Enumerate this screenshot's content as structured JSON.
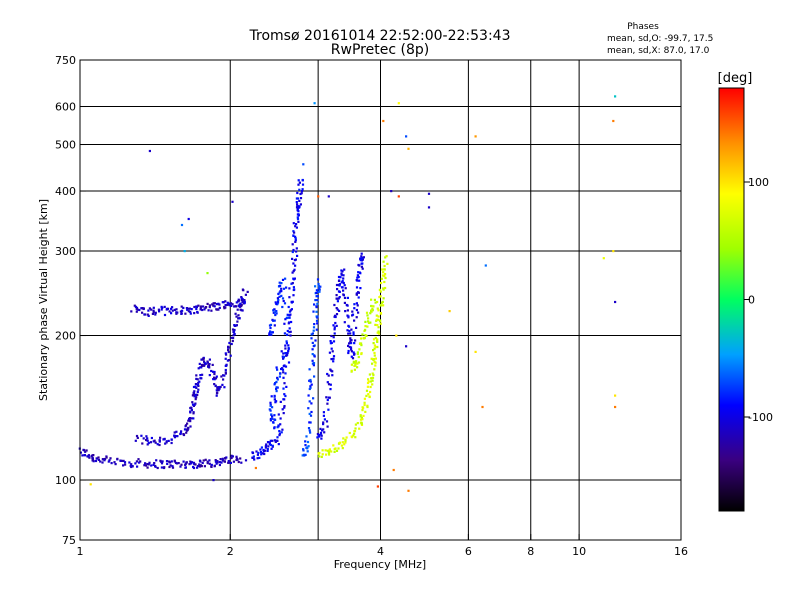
{
  "chart_data": {
    "type": "scatter",
    "title_line1": "Tromsø 20161014 22:52:00-22:53:43",
    "title_line2": "RwPretec (8p)",
    "xlabel": "Frequency [MHz]",
    "ylabel": "Stationary phase Virtual Height [km]",
    "x_scale": "log",
    "y_scale": "log",
    "xlim": [
      1,
      16
    ],
    "ylim": [
      75,
      750
    ],
    "x_ticks": [
      1,
      2,
      4,
      6,
      8,
      10,
      16
    ],
    "y_ticks": [
      75,
      100,
      200,
      300,
      400,
      500,
      600,
      750
    ],
    "x_grid": [
      2,
      3,
      4,
      6,
      8,
      10
    ],
    "y_grid": [
      100,
      200,
      300,
      400,
      500,
      600
    ],
    "grid": true,
    "legend": {
      "title": "Phases",
      "line1": "mean, sd,O: -99.7, 17.5",
      "line2": "mean, sd,X:  87.0, 17.0"
    },
    "colorbar": {
      "label": "[deg]",
      "range": [
        -180,
        180
      ],
      "ticks": [
        100,
        0,
        -100
      ],
      "tick_labels": [
        "100",
        "0",
        "-100"
      ]
    },
    "traces": [
      {
        "phase": -115,
        "points": [
          [
            1.0,
            115
          ],
          [
            1.05,
            112
          ],
          [
            1.1,
            110
          ],
          [
            1.2,
            109
          ],
          [
            1.3,
            108.5
          ],
          [
            1.4,
            108
          ],
          [
            1.5,
            108
          ],
          [
            1.6,
            108
          ],
          [
            1.7,
            108
          ],
          [
            1.8,
            108.5
          ],
          [
            1.9,
            109
          ],
          [
            2.0,
            110
          ],
          [
            2.1,
            111
          ]
        ]
      },
      {
        "phase": -112,
        "points": [
          [
            1.28,
            228
          ],
          [
            1.35,
            224
          ],
          [
            1.45,
            225
          ],
          [
            1.55,
            226
          ],
          [
            1.65,
            226
          ],
          [
            1.75,
            228
          ],
          [
            1.85,
            230
          ],
          [
            1.95,
            232
          ],
          [
            2.05,
            233
          ],
          [
            2.15,
            235
          ]
        ]
      },
      {
        "phase": -110,
        "points": [
          [
            1.3,
            122
          ],
          [
            1.4,
            120
          ],
          [
            1.5,
            121
          ],
          [
            1.6,
            125
          ],
          [
            1.65,
            130
          ],
          [
            1.68,
            140
          ],
          [
            1.7,
            150
          ],
          [
            1.72,
            160
          ],
          [
            1.75,
            175
          ],
          [
            1.8,
            178
          ],
          [
            1.85,
            165
          ],
          [
            1.9,
            150
          ],
          [
            1.95,
            170
          ],
          [
            2.0,
            190
          ],
          [
            2.05,
            210
          ],
          [
            2.1,
            230
          ],
          [
            2.15,
            250
          ]
        ]
      },
      {
        "phase": -95,
        "points": [
          [
            2.2,
            112
          ],
          [
            2.3,
            114
          ],
          [
            2.4,
            118
          ],
          [
            2.5,
            122
          ],
          [
            2.55,
            150
          ],
          [
            2.6,
            180
          ],
          [
            2.62,
            210
          ],
          [
            2.65,
            240
          ],
          [
            2.68,
            280
          ],
          [
            2.7,
            320
          ],
          [
            2.72,
            360
          ],
          [
            2.75,
            390
          ],
          [
            2.78,
            420
          ]
        ]
      },
      {
        "phase": -85,
        "points": [
          [
            2.4,
            200
          ],
          [
            2.45,
            220
          ],
          [
            2.5,
            240
          ],
          [
            2.55,
            260
          ],
          [
            2.6,
            190
          ],
          [
            2.5,
            170
          ],
          [
            2.45,
            150
          ],
          [
            2.42,
            135
          ],
          [
            2.48,
            128
          ]
        ]
      },
      {
        "phase": -75,
        "points": [
          [
            2.8,
            112
          ],
          [
            2.85,
            120
          ],
          [
            2.9,
            150
          ],
          [
            2.92,
            180
          ],
          [
            2.95,
            210
          ],
          [
            2.98,
            240
          ],
          [
            3.0,
            260
          ]
        ]
      },
      {
        "phase": -100,
        "points": [
          [
            3.0,
            122
          ],
          [
            3.1,
            130
          ],
          [
            3.15,
            160
          ],
          [
            3.2,
            190
          ],
          [
            3.25,
            220
          ],
          [
            3.3,
            250
          ],
          [
            3.35,
            270
          ],
          [
            3.4,
            240
          ],
          [
            3.45,
            200
          ],
          [
            3.5,
            180
          ],
          [
            3.55,
            220
          ],
          [
            3.6,
            250
          ],
          [
            3.65,
            280
          ],
          [
            3.7,
            300
          ]
        ]
      },
      {
        "phase": 70,
        "points": [
          [
            3.0,
            112
          ],
          [
            3.2,
            115
          ],
          [
            3.4,
            120
          ],
          [
            3.6,
            128
          ],
          [
            3.7,
            140
          ],
          [
            3.8,
            155
          ],
          [
            3.85,
            170
          ],
          [
            3.9,
            190
          ],
          [
            3.95,
            210
          ],
          [
            4.0,
            230
          ],
          [
            4.05,
            260
          ],
          [
            4.1,
            290
          ]
        ]
      },
      {
        "phase": 60,
        "points": [
          [
            3.5,
            170
          ],
          [
            3.6,
            180
          ],
          [
            3.7,
            200
          ],
          [
            3.8,
            220
          ],
          [
            3.9,
            240
          ]
        ]
      }
    ],
    "scatter": [
      {
        "x": 1.38,
        "y": 485,
        "phase": -110
      },
      {
        "x": 1.6,
        "y": 340,
        "phase": -60
      },
      {
        "x": 1.65,
        "y": 350,
        "phase": -100
      },
      {
        "x": 2.02,
        "y": 380,
        "phase": -110
      },
      {
        "x": 2.8,
        "y": 455,
        "phase": -70
      },
      {
        "x": 2.95,
        "y": 610,
        "phase": -50
      },
      {
        "x": 3.0,
        "y": 390,
        "phase": 150
      },
      {
        "x": 3.15,
        "y": 390,
        "phase": -110
      },
      {
        "x": 4.05,
        "y": 560,
        "phase": 140
      },
      {
        "x": 4.2,
        "y": 400,
        "phase": -115
      },
      {
        "x": 4.35,
        "y": 390,
        "phase": 160
      },
      {
        "x": 4.5,
        "y": 520,
        "phase": -70
      },
      {
        "x": 5.0,
        "y": 395,
        "phase": -110
      },
      {
        "x": 5.0,
        "y": 370,
        "phase": -110
      },
      {
        "x": 4.35,
        "y": 610,
        "phase": 90
      },
      {
        "x": 4.55,
        "y": 490,
        "phase": 120
      },
      {
        "x": 6.2,
        "y": 520,
        "phase": 130
      },
      {
        "x": 6.5,
        "y": 280,
        "phase": -60
      },
      {
        "x": 6.2,
        "y": 185,
        "phase": 100
      },
      {
        "x": 6.4,
        "y": 142,
        "phase": 140
      },
      {
        "x": 5.5,
        "y": 225,
        "phase": 110
      },
      {
        "x": 4.5,
        "y": 190,
        "phase": -110
      },
      {
        "x": 4.3,
        "y": 200,
        "phase": 100
      },
      {
        "x": 4.25,
        "y": 105,
        "phase": 140
      },
      {
        "x": 4.55,
        "y": 95,
        "phase": 140
      },
      {
        "x": 3.95,
        "y": 97,
        "phase": 160
      },
      {
        "x": 2.15,
        "y": 110,
        "phase": -110
      },
      {
        "x": 2.25,
        "y": 106,
        "phase": 140
      },
      {
        "x": 1.85,
        "y": 100,
        "phase": -110
      },
      {
        "x": 1.05,
        "y": 98,
        "phase": 100
      },
      {
        "x": 11.2,
        "y": 290,
        "phase": 80
      },
      {
        "x": 11.7,
        "y": 300,
        "phase": 100
      },
      {
        "x": 11.8,
        "y": 630,
        "phase": -30
      },
      {
        "x": 11.7,
        "y": 560,
        "phase": 140
      },
      {
        "x": 11.8,
        "y": 235,
        "phase": -110
      },
      {
        "x": 11.8,
        "y": 150,
        "phase": 100
      },
      {
        "x": 11.8,
        "y": 142,
        "phase": 140
      },
      {
        "x": 1.62,
        "y": 300,
        "phase": -40
      },
      {
        "x": 1.8,
        "y": 270,
        "phase": 40
      }
    ]
  }
}
